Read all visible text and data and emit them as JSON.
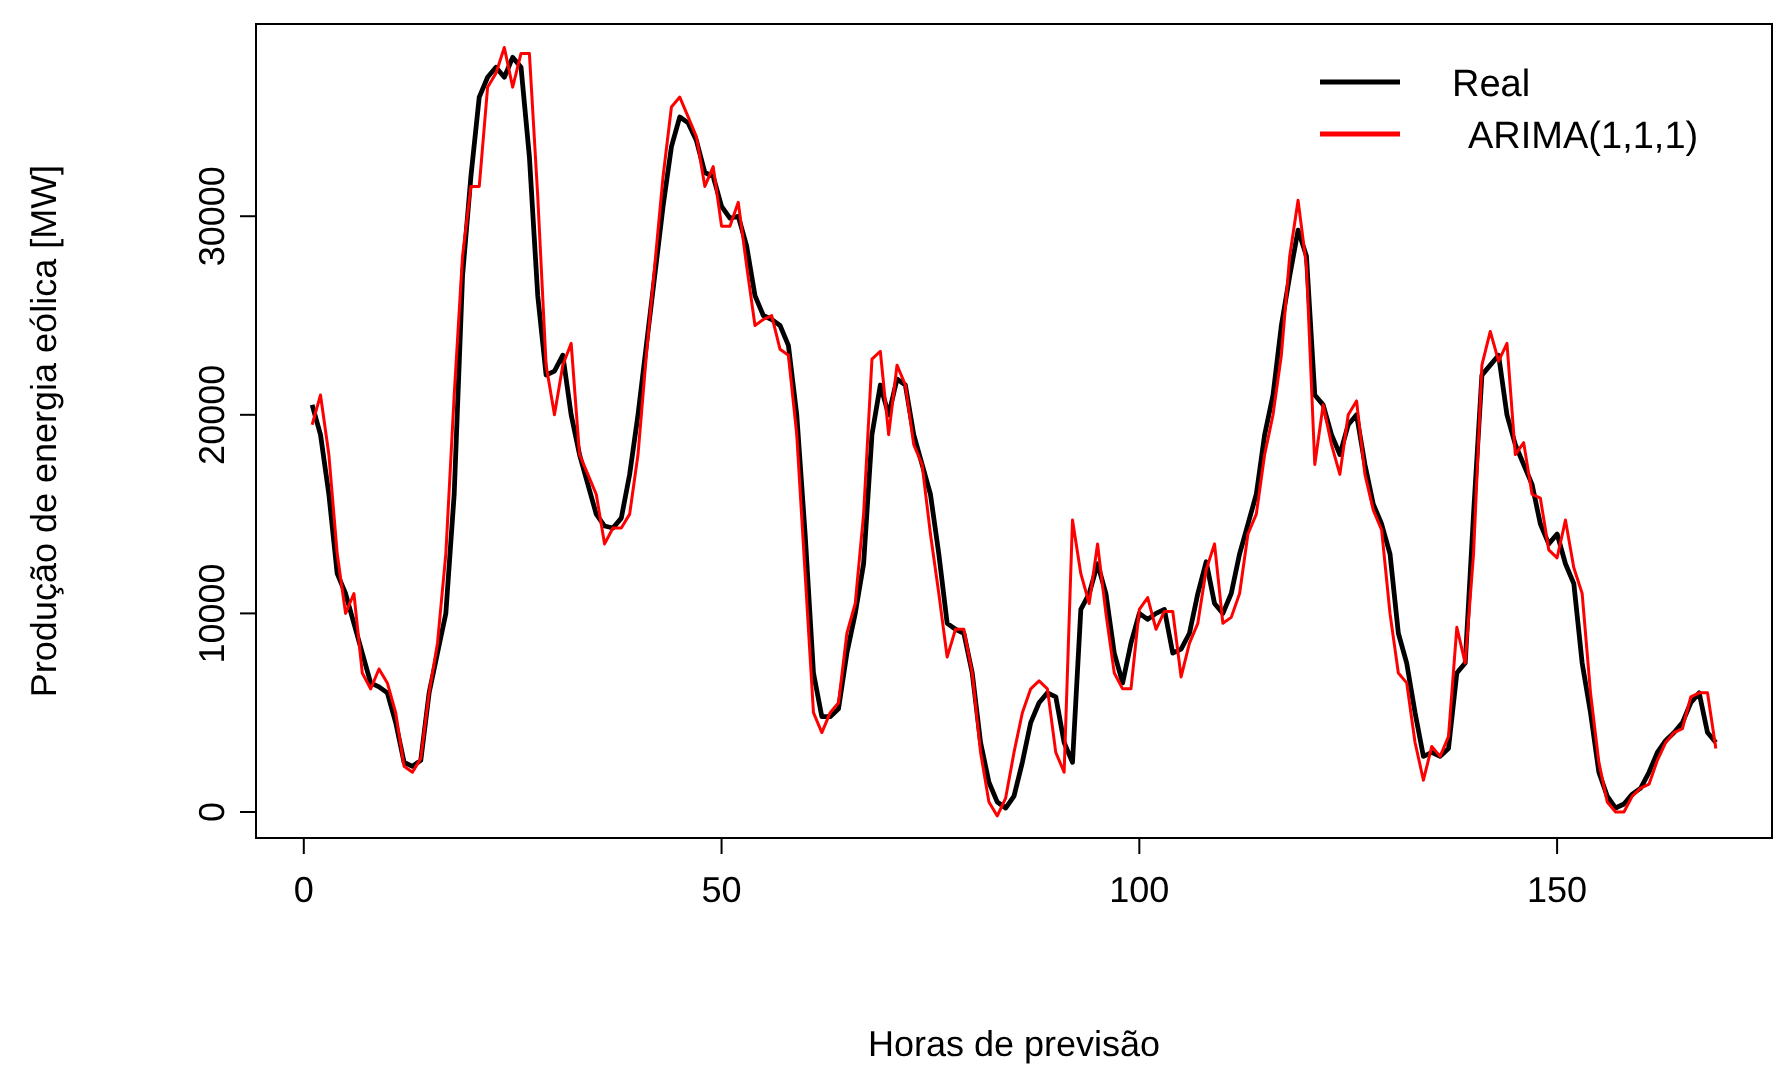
{
  "chart_data": {
    "type": "line",
    "xlabel": "Horas de previsão",
    "ylabel": "Produção de energia eólica [MW]",
    "x": [
      1,
      2,
      3,
      4,
      5,
      6,
      7,
      8,
      9,
      10,
      11,
      12,
      13,
      14,
      15,
      16,
      17,
      18,
      19,
      20,
      21,
      22,
      23,
      24,
      25,
      26,
      27,
      28,
      29,
      30,
      31,
      32,
      33,
      34,
      35,
      36,
      37,
      38,
      39,
      40,
      41,
      42,
      43,
      44,
      45,
      46,
      47,
      48,
      49,
      50,
      51,
      52,
      53,
      54,
      55,
      56,
      57,
      58,
      59,
      60,
      61,
      62,
      63,
      64,
      65,
      66,
      67,
      68,
      69,
      70,
      71,
      72,
      73,
      74,
      75,
      76,
      77,
      78,
      79,
      80,
      81,
      82,
      83,
      84,
      85,
      86,
      87,
      88,
      89,
      90,
      91,
      92,
      93,
      94,
      95,
      96,
      97,
      98,
      99,
      100,
      101,
      102,
      103,
      104,
      105,
      106,
      107,
      108,
      109,
      110,
      111,
      112,
      113,
      114,
      115,
      116,
      117,
      118,
      119,
      120,
      121,
      122,
      123,
      124,
      125,
      126,
      127,
      128,
      129,
      130,
      131,
      132,
      133,
      134,
      135,
      136,
      137,
      138,
      139,
      140,
      141,
      142,
      143,
      144,
      145,
      146,
      147,
      148,
      149,
      150,
      151,
      152,
      153,
      154,
      155,
      156,
      157,
      158,
      159,
      160,
      161,
      162,
      163,
      164,
      165,
      166,
      167,
      168,
      169
    ],
    "series": [
      {
        "name": "Real",
        "color": "#000000",
        "values": [
          20500,
          19000,
          16000,
          12000,
          11000,
          9500,
          8000,
          6500,
          6300,
          6000,
          4500,
          2500,
          2300,
          2600,
          6000,
          8000,
          10000,
          16000,
          27000,
          32000,
          36000,
          37000,
          37500,
          37000,
          38000,
          37500,
          33000,
          26000,
          22000,
          22200,
          23000,
          20000,
          18000,
          16500,
          15000,
          14400,
          14300,
          14800,
          17000,
          20000,
          23500,
          27000,
          30500,
          33500,
          35000,
          34700,
          33800,
          32200,
          32000,
          30500,
          29900,
          30000,
          28500,
          26000,
          25000,
          24800,
          24500,
          23500,
          20000,
          14000,
          7000,
          4800,
          4800,
          5200,
          8000,
          10000,
          12500,
          19000,
          21500,
          20000,
          21800,
          21500,
          19000,
          17500,
          16000,
          13000,
          9500,
          9200,
          9000,
          7000,
          3500,
          1500,
          500,
          200,
          800,
          2500,
          4500,
          5500,
          6000,
          5800,
          3500,
          2500,
          10200,
          11000,
          12500,
          11000,
          8000,
          6500,
          8500,
          10000,
          9700,
          10000,
          10200,
          8000,
          8200,
          9000,
          11000,
          12600,
          10500,
          10000,
          11000,
          13000,
          14500,
          16000,
          19000,
          21000,
          24500,
          27000,
          29300,
          28000,
          21000,
          20500,
          19000,
          18000,
          19500,
          20000,
          17500,
          15500,
          14500,
          13000,
          9000,
          7500,
          5000,
          2800,
          3000,
          2800,
          3200,
          7000,
          7500,
          15000,
          22000,
          22500,
          23000,
          20000,
          18500,
          17500,
          16500,
          14500,
          13500,
          14000,
          12500,
          11500,
          7500,
          5000,
          2000,
          800,
          200,
          400,
          900,
          1200,
          2000,
          3000,
          3600,
          4000,
          4500,
          5500,
          6000,
          4000,
          3500
        ]
      },
      {
        "name": "ARIMA(1,1,1)",
        "color": "#ff0000",
        "values": [
          19500,
          21000,
          18000,
          13000,
          10000,
          11000,
          7000,
          6200,
          7200,
          6500,
          5000,
          2300,
          2000,
          2700,
          6000,
          8500,
          13000,
          21000,
          28000,
          31500,
          31500,
          36500,
          37200,
          38500,
          36500,
          38200,
          38200,
          31000,
          22500,
          20000,
          22500,
          23600,
          18000,
          17000,
          16000,
          13500,
          14300,
          14300,
          15000,
          18000,
          23000,
          27500,
          32000,
          35500,
          36000,
          35000,
          34000,
          31500,
          32500,
          29500,
          29500,
          30700,
          27500,
          24500,
          24800,
          25000,
          23300,
          23000,
          19000,
          12000,
          5000,
          4000,
          5000,
          5500,
          9000,
          10500,
          15000,
          22800,
          23200,
          19000,
          22500,
          21500,
          18500,
          17500,
          14000,
          11000,
          7800,
          9200,
          9200,
          7000,
          3000,
          500,
          -200,
          700,
          3000,
          5000,
          6200,
          6600,
          6200,
          3000,
          2000,
          14700,
          12000,
          10500,
          13500,
          10000,
          7000,
          6200,
          6200,
          10200,
          10800,
          9200,
          10100,
          10100,
          6800,
          8500,
          9500,
          12200,
          13500,
          9500,
          9800,
          11000,
          14000,
          15000,
          18000,
          20000,
          23000,
          28000,
          30800,
          27500,
          17500,
          20500,
          18500,
          17000,
          20000,
          20700,
          17000,
          15200,
          14200,
          10000,
          7000,
          6500,
          3500,
          1600,
          3300,
          2800,
          3800,
          9300,
          7500,
          13000,
          22500,
          24200,
          22700,
          23600,
          18000,
          18600,
          16000,
          15800,
          13200,
          12800,
          14700,
          12300,
          11000,
          6000,
          2500,
          500,
          0,
          0,
          800,
          1200,
          1400,
          2600,
          3500,
          4000,
          4200,
          5800,
          6000,
          6000,
          3200
        ]
      }
    ],
    "xlim": [
      -5.72,
      175.72
    ],
    "ylim": [
      -1310,
      39680
    ],
    "xticks": [
      0,
      50,
      100,
      150
    ],
    "yticks": [
      0,
      10000,
      20000,
      30000
    ],
    "legend": "top right",
    "grid": false
  }
}
